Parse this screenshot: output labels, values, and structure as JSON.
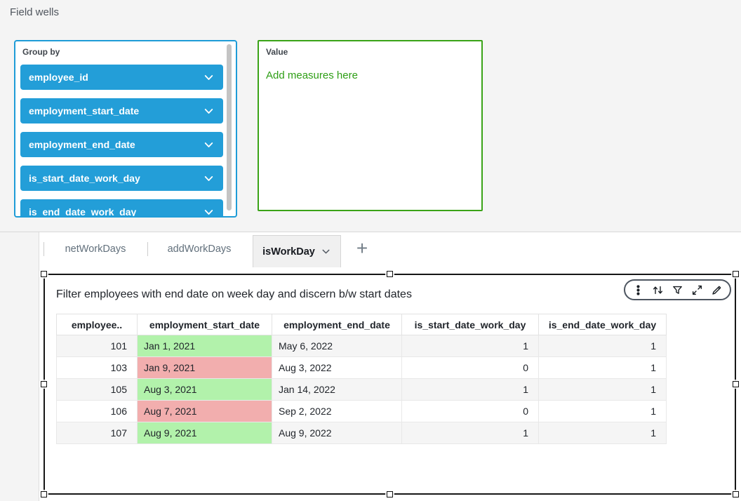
{
  "page": {
    "field_wells_title": "Field wells"
  },
  "group_by": {
    "label": "Group by",
    "pills": [
      "employee_id",
      "employment_start_date",
      "employment_end_date",
      "is_start_date_work_day",
      "is_end_date_work_day"
    ]
  },
  "value_well": {
    "label": "Value",
    "placeholder": "Add measures here"
  },
  "tabs": {
    "items": [
      {
        "label": "netWorkDays",
        "active": false
      },
      {
        "label": "addWorkDays",
        "active": false
      },
      {
        "label": "isWorkDay",
        "active": true
      }
    ],
    "add_button": "+"
  },
  "visual": {
    "title": "Filter employees with end date on week day and discern b/w start dates",
    "toolbar_icons": [
      "menu-options-icon",
      "swap-axes-icon",
      "filter-icon",
      "maximize-icon",
      "edit-icon"
    ]
  },
  "chart_data": {
    "type": "table",
    "columns": [
      "employee..",
      "employment_start_date",
      "employment_end_date",
      "is_start_date_work_day",
      "is_end_date_work_day"
    ],
    "rows": [
      {
        "employee_id": "101",
        "employment_start_date": "Jan 1, 2021",
        "start_date_highlight": "green",
        "employment_end_date": "May 6, 2022",
        "is_start_date_work_day": "1",
        "is_end_date_work_day": "1"
      },
      {
        "employee_id": "103",
        "employment_start_date": "Jan 9, 2021",
        "start_date_highlight": "red",
        "employment_end_date": "Aug 3, 2022",
        "is_start_date_work_day": "0",
        "is_end_date_work_day": "1"
      },
      {
        "employee_id": "105",
        "employment_start_date": "Aug 3, 2021",
        "start_date_highlight": "green",
        "employment_end_date": "Jan 14, 2022",
        "is_start_date_work_day": "1",
        "is_end_date_work_day": "1"
      },
      {
        "employee_id": "106",
        "employment_start_date": "Aug 7, 2021",
        "start_date_highlight": "red",
        "employment_end_date": "Sep 2, 2022",
        "is_start_date_work_day": "0",
        "is_end_date_work_day": "1"
      },
      {
        "employee_id": "107",
        "employment_start_date": "Aug 9, 2021",
        "start_date_highlight": "green",
        "employment_end_date": "Aug 9, 2022",
        "is_start_date_work_day": "1",
        "is_end_date_work_day": "1"
      }
    ]
  },
  "colors": {
    "pill_blue": "#239ed8",
    "group_by_border": "#1e9cd7",
    "value_border": "#3aa317",
    "value_text": "#2e9e15",
    "highlight_green": "#b2f2ab",
    "highlight_red": "#f2aeae",
    "zebra_gray": "#f5f5f5",
    "selection_border": "#161616"
  }
}
